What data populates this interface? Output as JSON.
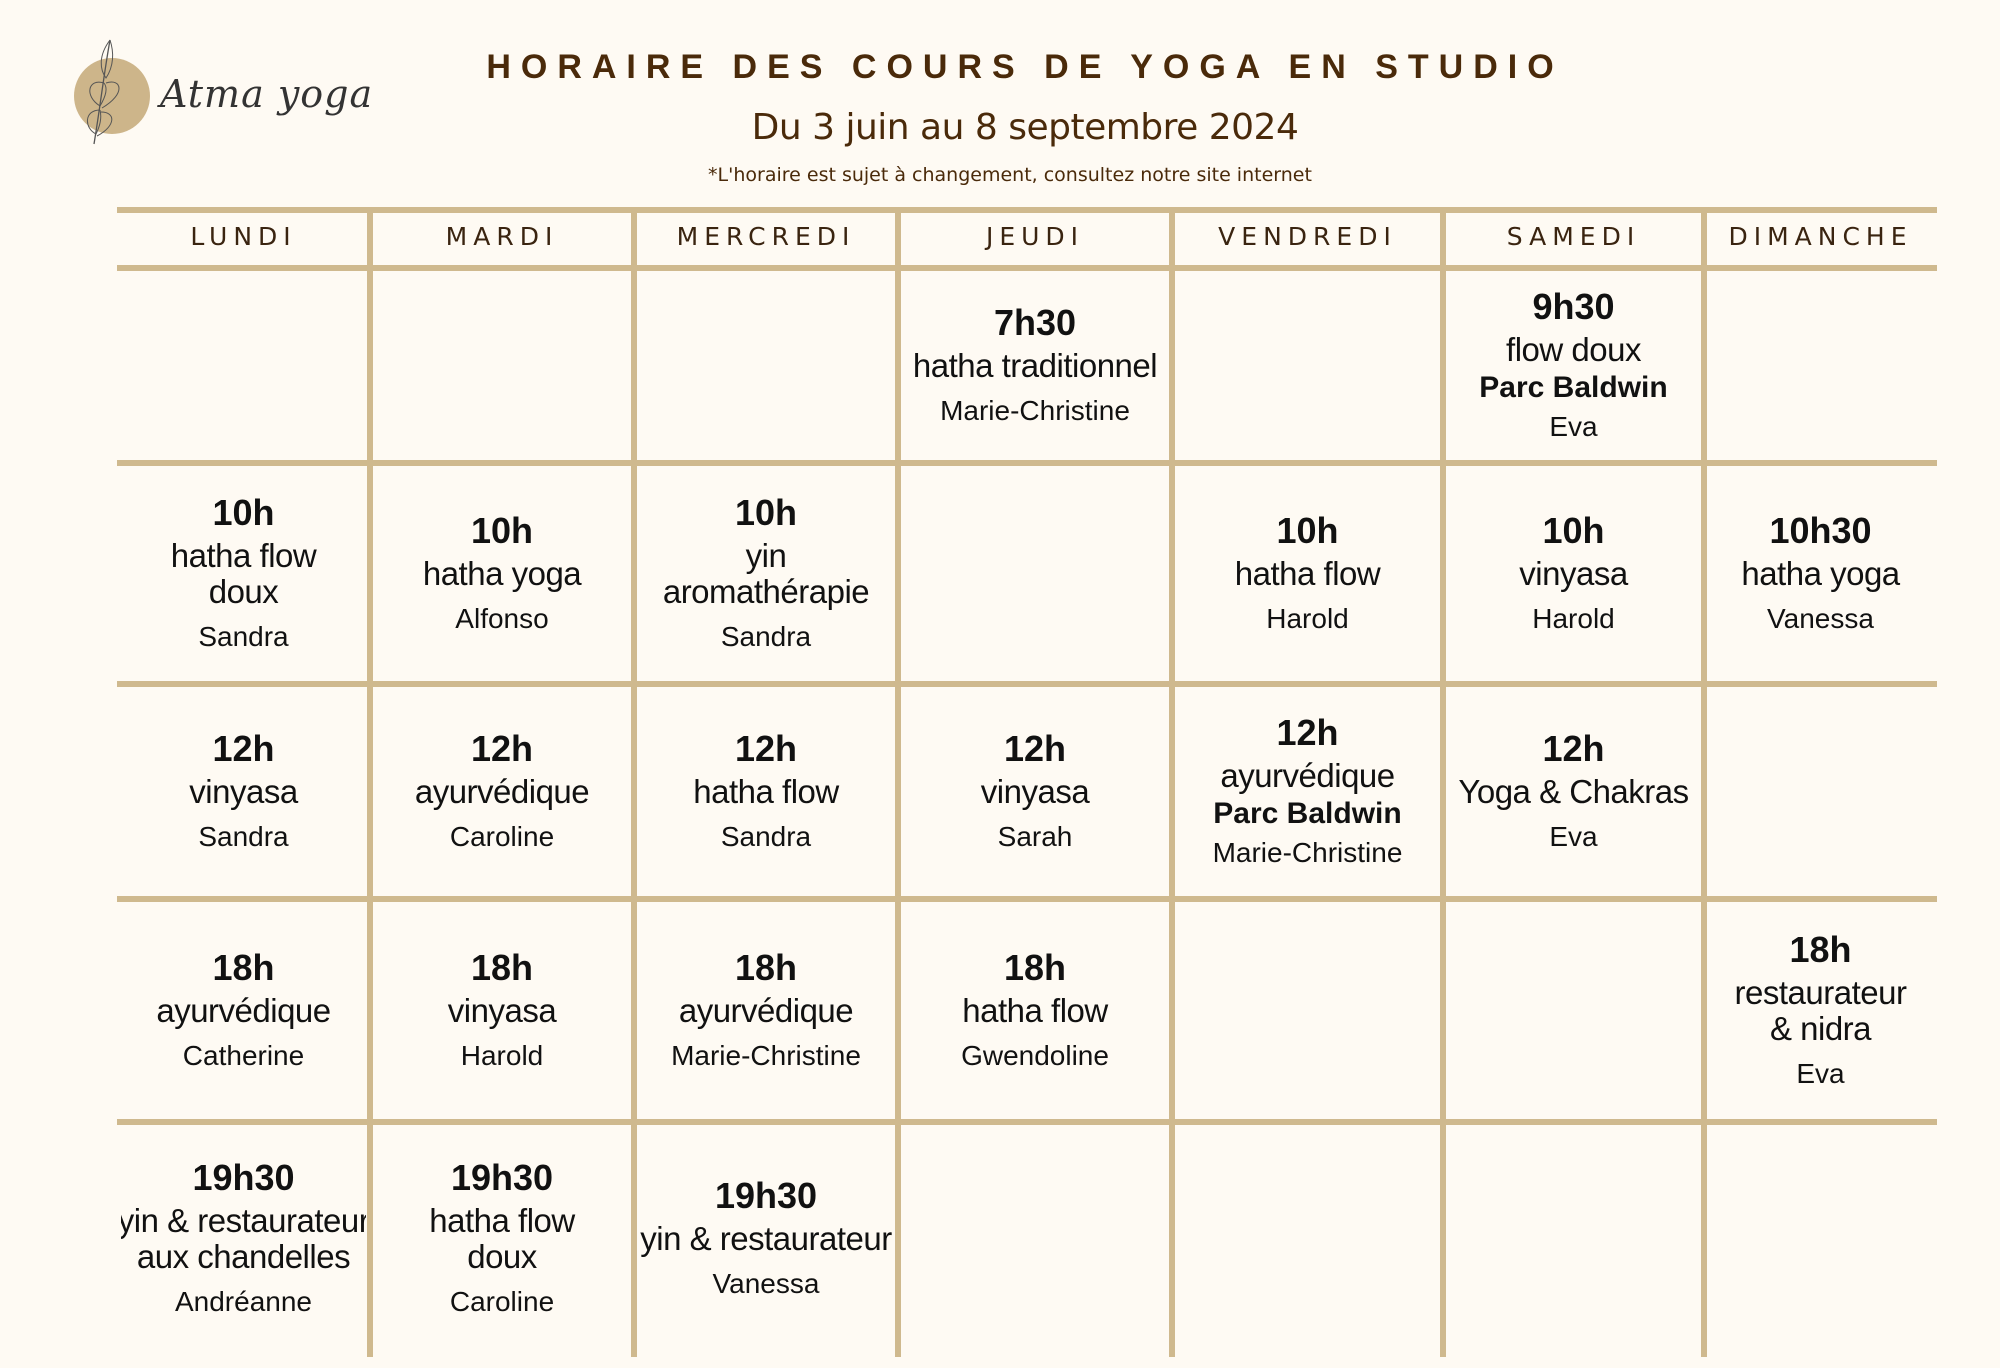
{
  "header": {
    "title": "HORAIRE DES COURS DE YOGA EN STUDIO",
    "subtitle": "Du 3 juin au 8 septembre 2024",
    "note": "*L'horaire est sujet à changement, consultez notre site internet"
  },
  "logo": {
    "text": "Atma yoga",
    "icon": "leaf-icon",
    "circle_color": "#cdb58a"
  },
  "colors": {
    "background": "#fefaf3",
    "grid": "#cfb98e",
    "title": "#4a2a0a"
  },
  "days": [
    "LUNDI",
    "MARDI",
    "MERCREDI",
    "JEUDI",
    "VENDREDI",
    "SAMEDI",
    "DIMANCHE"
  ],
  "rows": [
    [
      null,
      null,
      null,
      {
        "time": "7h30",
        "class": [
          "hatha traditionnel"
        ],
        "teacher": "Marie-Christine"
      },
      null,
      {
        "time": "9h30",
        "class": [
          "flow doux"
        ],
        "location": "Parc Baldwin",
        "teacher": "Eva"
      },
      null
    ],
    [
      {
        "time": "10h",
        "class": [
          "hatha flow",
          "doux"
        ],
        "teacher": "Sandra"
      },
      {
        "time": "10h",
        "class": [
          "hatha yoga"
        ],
        "teacher": "Alfonso"
      },
      {
        "time": "10h",
        "class": [
          "yin",
          "aromathérapie"
        ],
        "teacher": "Sandra"
      },
      null,
      {
        "time": "10h",
        "class": [
          "hatha flow"
        ],
        "teacher": "Harold"
      },
      {
        "time": "10h",
        "class": [
          "vinyasa"
        ],
        "teacher": "Harold"
      },
      {
        "time": "10h30",
        "class": [
          "hatha yoga"
        ],
        "teacher": "Vanessa"
      }
    ],
    [
      {
        "time": "12h",
        "class": [
          "vinyasa"
        ],
        "teacher": "Sandra"
      },
      {
        "time": "12h",
        "class": [
          "ayurvédique"
        ],
        "teacher": "Caroline"
      },
      {
        "time": "12h",
        "class": [
          "hatha flow"
        ],
        "teacher": "Sandra"
      },
      {
        "time": "12h",
        "class": [
          "vinyasa"
        ],
        "teacher": "Sarah"
      },
      {
        "time": "12h",
        "class": [
          "ayurvédique"
        ],
        "location": "Parc Baldwin",
        "teacher": "Marie-Christine"
      },
      {
        "time": "12h",
        "class": [
          "Yoga & Chakras"
        ],
        "teacher": "Eva"
      },
      null
    ],
    [
      {
        "time": "18h",
        "class": [
          "ayurvédique"
        ],
        "teacher": "Catherine"
      },
      {
        "time": "18h",
        "class": [
          "vinyasa"
        ],
        "teacher": "Harold"
      },
      {
        "time": "18h",
        "class": [
          "ayurvédique"
        ],
        "teacher": "Marie-Christine"
      },
      {
        "time": "18h",
        "class": [
          "hatha flow"
        ],
        "teacher": "Gwendoline"
      },
      null,
      null,
      {
        "time": "18h",
        "class": [
          "restaurateur",
          "& nidra"
        ],
        "teacher": "Eva"
      }
    ],
    [
      {
        "time": "19h30",
        "class": [
          "yin & restaurateur",
          "aux chandelles"
        ],
        "teacher": "Andréanne"
      },
      {
        "time": "19h30",
        "class": [
          "hatha flow",
          "doux"
        ],
        "teacher": "Caroline"
      },
      {
        "time": "19h30",
        "class": [
          "yin & restaurateur"
        ],
        "teacher": "Vanessa"
      },
      null,
      null,
      null,
      null
    ]
  ]
}
